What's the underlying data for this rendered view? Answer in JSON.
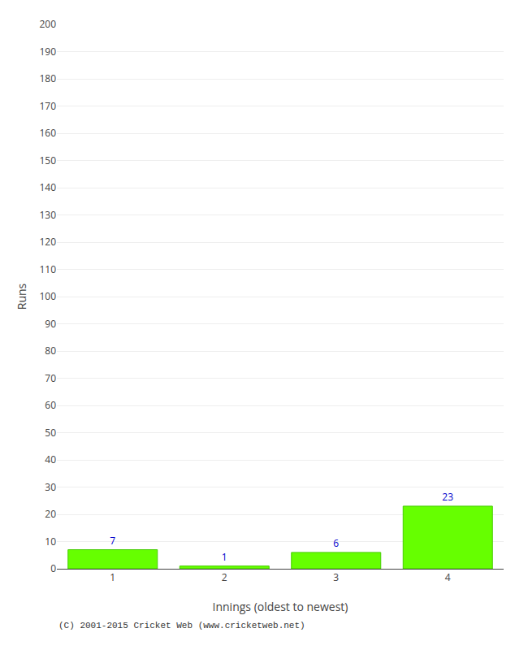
{
  "chart_data": {
    "type": "bar",
    "categories": [
      "1",
      "2",
      "3",
      "4"
    ],
    "values": [
      7,
      1,
      6,
      23
    ],
    "color": "#66ff00",
    "xlabel": "Innings (oldest to newest)",
    "ylabel": "Runs",
    "ylim": [
      0,
      200
    ],
    "yticks": [
      0,
      10,
      20,
      30,
      40,
      50,
      60,
      70,
      80,
      90,
      100,
      110,
      120,
      130,
      140,
      150,
      160,
      170,
      180,
      190,
      200
    ],
    "grid": true,
    "data_labels": true,
    "annotations": [
      "(C) 2001-2015 Cricket Web (www.cricketweb.net)"
    ]
  }
}
